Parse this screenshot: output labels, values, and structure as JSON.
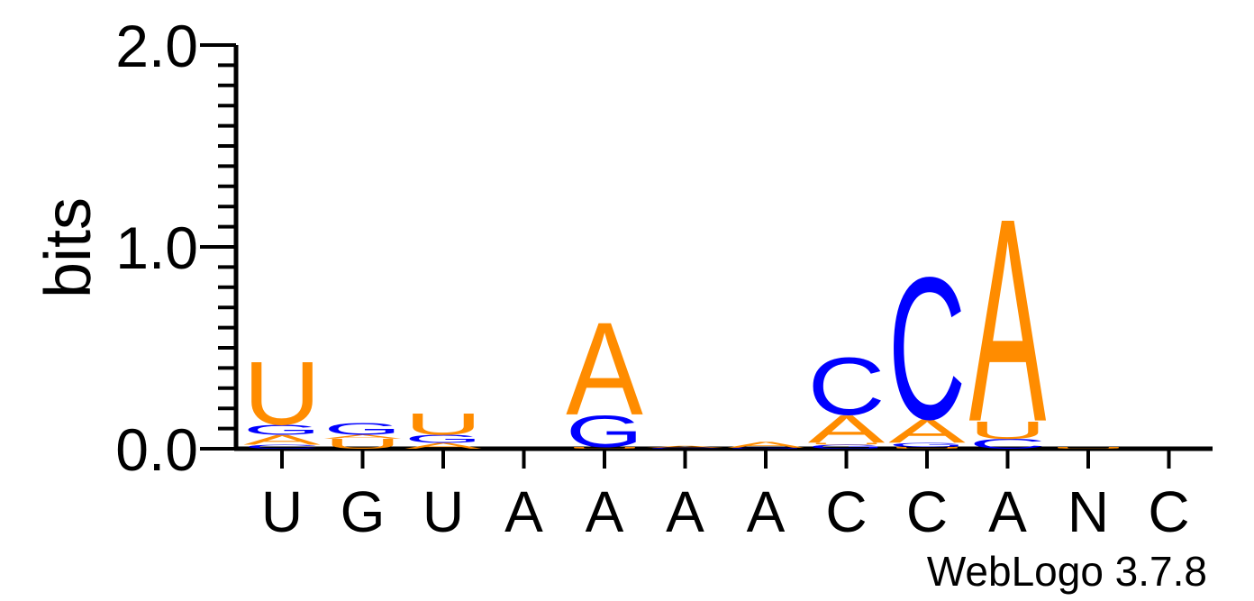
{
  "chart_data": {
    "type": "sequence-logo",
    "ylabel": "bits",
    "ylim": [
      0,
      2
    ],
    "yticks": [
      "0.0",
      "1.0",
      "2.0"
    ],
    "positions": [
      "U",
      "G",
      "U",
      "A",
      "A",
      "A",
      "A",
      "C",
      "C",
      "A",
      "N",
      "C"
    ],
    "colors": {
      "A": "#FF8C00",
      "U": "#FF8C00",
      "G": "#0000FF",
      "C": "#0000FF"
    },
    "stacks": [
      [
        {
          "letter": "C",
          "bits": 0.02
        },
        {
          "letter": "A",
          "bits": 0.05
        },
        {
          "letter": "G",
          "bits": 0.05
        },
        {
          "letter": "U",
          "bits": 0.32
        }
      ],
      [
        {
          "letter": "U",
          "bits": 0.05
        },
        {
          "letter": "A",
          "bits": 0.02
        },
        {
          "letter": "G",
          "bits": 0.06
        }
      ],
      [
        {
          "letter": "A",
          "bits": 0.03
        },
        {
          "letter": "G",
          "bits": 0.04
        },
        {
          "letter": "U",
          "bits": 0.11
        }
      ],
      [],
      [
        {
          "letter": "U",
          "bits": 0.01
        },
        {
          "letter": "G",
          "bits": 0.16
        },
        {
          "letter": "A",
          "bits": 0.47
        }
      ],
      [
        {
          "letter": "C",
          "bits": 0.005
        },
        {
          "letter": "A",
          "bits": 0.01
        }
      ],
      [
        {
          "letter": "G",
          "bits": 0.005
        },
        {
          "letter": "A",
          "bits": 0.03
        }
      ],
      [
        {
          "letter": "G",
          "bits": 0.02
        },
        {
          "letter": "U",
          "bits": 0.01
        },
        {
          "letter": "A",
          "bits": 0.14
        },
        {
          "letter": "C",
          "bits": 0.29
        }
      ],
      [
        {
          "letter": "U",
          "bits": 0.01
        },
        {
          "letter": "G",
          "bits": 0.02
        },
        {
          "letter": "A",
          "bits": 0.12
        },
        {
          "letter": "C",
          "bits": 0.72
        }
      ],
      [
        {
          "letter": "C",
          "bits": 0.05
        },
        {
          "letter": "U",
          "bits": 0.09
        },
        {
          "letter": "A",
          "bits": 1.03
        }
      ],
      [
        {
          "letter": "U",
          "bits": 0.01
        }
      ],
      []
    ],
    "credit": "WebLogo 3.7.8"
  }
}
